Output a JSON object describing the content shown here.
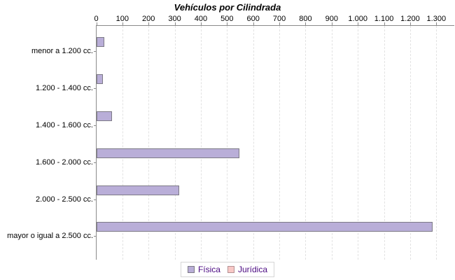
{
  "chart_data": {
    "type": "bar",
    "orientation": "horizontal",
    "title": "Vehículos por Cilindrada",
    "categories": [
      "menor a 1.200 cc.",
      "1.200 - 1.400 cc.",
      "1.400 - 1.600 cc.",
      "1.600 - 2.000 cc.",
      "2.000 - 2.500 cc.",
      "mayor o igual a 2.500 cc."
    ],
    "series": [
      {
        "name": "Física",
        "color": "#b9aed8",
        "border_color": "#7d7a86",
        "values": [
          30,
          24,
          60,
          545,
          315,
          1285
        ]
      },
      {
        "name": "Jurídica",
        "color": "#f8c8c6",
        "border_color": "#b49294",
        "values": [
          0,
          0,
          0,
          0,
          0,
          0
        ]
      }
    ],
    "xlim": [
      0,
      1300
    ],
    "x_ticks": [
      0,
      100,
      200,
      300,
      400,
      500,
      600,
      700,
      800,
      900,
      1000,
      1100,
      1200,
      1300
    ],
    "x_tick_labels": [
      "0",
      "100",
      "200",
      "300",
      "400",
      "500",
      "600",
      "700",
      "800",
      "900",
      "1.000",
      "1.100",
      "1.200",
      "1.300"
    ],
    "grid": "vertical dashed",
    "legend_position": "bottom",
    "colors": {
      "background": "#ffffff",
      "axis": "#8a8a8a",
      "gridline": "#e2e2e2",
      "title_text": "#000000",
      "tick_text": "#000000",
      "legend_text": "#4b0a82"
    }
  }
}
